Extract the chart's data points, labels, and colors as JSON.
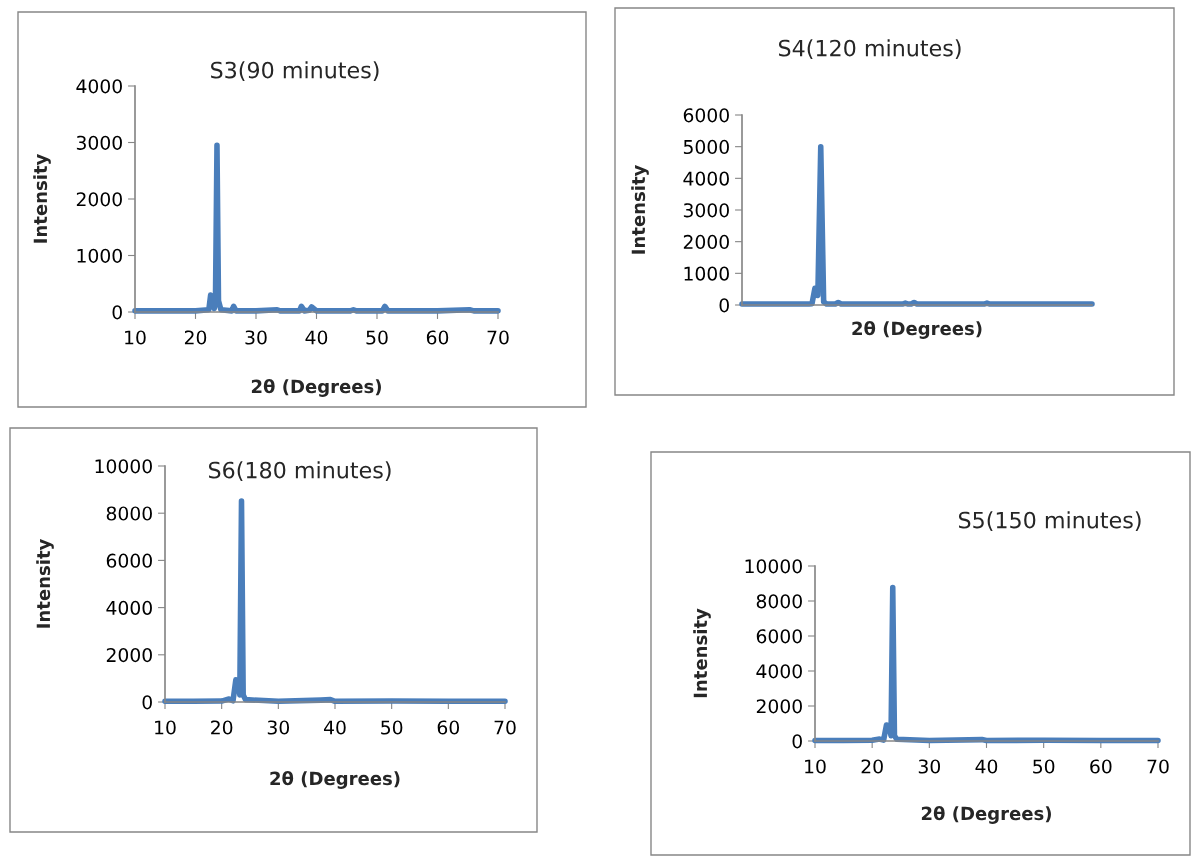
{
  "chart_data": [
    {
      "type": "line",
      "title": "S3(90 minutes)",
      "xlabel": "2θ (Degrees)",
      "ylabel": "Intensity",
      "xlim": [
        10,
        70
      ],
      "xticks": [
        10,
        20,
        30,
        40,
        50,
        60,
        70
      ],
      "ylim": [
        0,
        4000
      ],
      "yticks": [
        0,
        1000,
        2000,
        3000,
        4000
      ],
      "x": [
        10,
        15,
        20,
        22.2,
        22.5,
        22.8,
        23.1,
        23.3,
        23.55,
        23.8,
        24.2,
        26,
        26.3,
        26.7,
        30,
        33.5,
        34,
        37.2,
        37.5,
        38,
        38.8,
        39.2,
        40,
        45.6,
        46.1,
        46.6,
        50.9,
        51.3,
        51.8,
        60,
        65.3,
        66,
        70
      ],
      "series": [
        {
          "color": "#4a7ebb",
          "values": [
            20,
            20,
            20,
            40,
            300,
            250,
            60,
            200,
            2950,
            200,
            40,
            20,
            100,
            20,
            20,
            40,
            20,
            20,
            100,
            20,
            30,
            90,
            20,
            20,
            40,
            20,
            20,
            100,
            20,
            20,
            40,
            20,
            20
          ]
        }
      ]
    },
    {
      "type": "line",
      "title": "S4(120 minutes)",
      "xlabel": "2θ (Degrees)",
      "ylabel": "Intensity",
      "ylim": [
        0,
        6000
      ],
      "yticks": [
        0,
        1000,
        2000,
        3000,
        4000,
        5000,
        6000
      ],
      "tick_labels": "y",
      "categories": [
        null,
        null,
        null,
        null,
        null,
        null,
        null,
        null,
        null,
        null,
        null,
        null,
        null,
        null,
        null,
        null,
        null,
        null,
        null,
        null,
        null,
        null,
        null,
        null,
        null,
        null,
        null,
        null,
        null,
        null,
        null,
        null,
        null,
        null,
        null,
        null,
        null,
        null,
        null,
        null,
        null,
        null,
        null,
        null,
        null,
        null,
        null,
        null,
        null,
        null,
        null,
        null,
        null,
        null,
        null,
        null,
        null,
        null,
        null,
        null,
        null,
        null,
        null,
        null,
        null,
        null,
        null,
        null,
        null,
        null,
        null,
        null,
        null,
        null,
        null,
        null,
        null,
        null,
        null,
        null,
        null,
        null,
        null,
        null,
        null,
        null,
        null,
        null,
        null,
        null,
        null,
        null,
        null,
        null,
        null,
        null,
        null,
        null,
        null,
        null,
        null,
        null,
        null,
        null,
        null,
        null,
        null,
        null,
        null,
        null,
        null,
        null,
        null,
        null,
        null,
        null,
        null,
        null,
        null,
        null,
        null
      ],
      "series": [
        {
          "color": "#4a7ebb",
          "values": [
            30,
            30,
            30,
            30,
            30,
            30,
            30,
            30,
            30,
            30,
            30,
            30,
            30,
            30,
            30,
            30,
            30,
            30,
            30,
            30,
            30,
            30,
            30,
            30,
            40,
            530,
            300,
            5000,
            100,
            30,
            30,
            30,
            30,
            80,
            30,
            30,
            30,
            30,
            30,
            30,
            30,
            30,
            30,
            30,
            30,
            30,
            30,
            30,
            30,
            30,
            30,
            30,
            30,
            30,
            30,
            30,
            60,
            30,
            30,
            80,
            30,
            30,
            30,
            30,
            30,
            30,
            30,
            30,
            30,
            30,
            30,
            30,
            30,
            30,
            30,
            30,
            30,
            30,
            30,
            30,
            30,
            30,
            30,
            30,
            60,
            30,
            30,
            30,
            30,
            30,
            30,
            30,
            30,
            30,
            30,
            30,
            30,
            30,
            30,
            30,
            30,
            30,
            30,
            30,
            30,
            30,
            30,
            30,
            30,
            30,
            30,
            30,
            30,
            30,
            30,
            30,
            30,
            30,
            30,
            30,
            30
          ]
        }
      ]
    },
    {
      "type": "line",
      "title": "S6(180 minutes)",
      "xlabel": "2θ (Degrees)",
      "ylabel": "Intensity",
      "xlim": [
        10,
        70
      ],
      "xticks": [
        10,
        20,
        30,
        40,
        50,
        60,
        70
      ],
      "ylim": [
        0,
        10000
      ],
      "yticks": [
        0,
        2000,
        4000,
        6000,
        8000,
        10000
      ],
      "x": [
        10,
        15,
        20,
        21.3,
        22,
        22.5,
        22.9,
        23.2,
        23.5,
        23.8,
        24.2,
        30,
        37.5,
        39.2,
        40,
        50,
        60,
        70
      ],
      "series": [
        {
          "color": "#4a7ebb",
          "values": [
            30,
            30,
            40,
            130,
            50,
            940,
            900,
            300,
            8520,
            300,
            100,
            30,
            80,
            100,
            30,
            40,
            30,
            30
          ]
        }
      ]
    },
    {
      "type": "line",
      "title": "S5(150 minutes)",
      "xlabel": "2θ (Degrees)",
      "ylabel": "Intensity",
      "xlim": [
        10,
        70
      ],
      "xticks": [
        10,
        20,
        30,
        40,
        50,
        60,
        70
      ],
      "ylim": [
        0,
        10000
      ],
      "yticks": [
        0,
        2000,
        4000,
        6000,
        8000,
        10000
      ],
      "x": [
        10,
        15,
        20,
        21.3,
        22,
        22.5,
        22.9,
        23.3,
        23.6,
        23.9,
        24.3,
        30,
        39.2,
        40,
        50,
        60,
        70
      ],
      "series": [
        {
          "color": "#4a7ebb",
          "values": [
            30,
            30,
            40,
            110,
            50,
            910,
            880,
            300,
            8770,
            300,
            100,
            30,
            80,
            30,
            40,
            30,
            30
          ]
        }
      ]
    }
  ]
}
